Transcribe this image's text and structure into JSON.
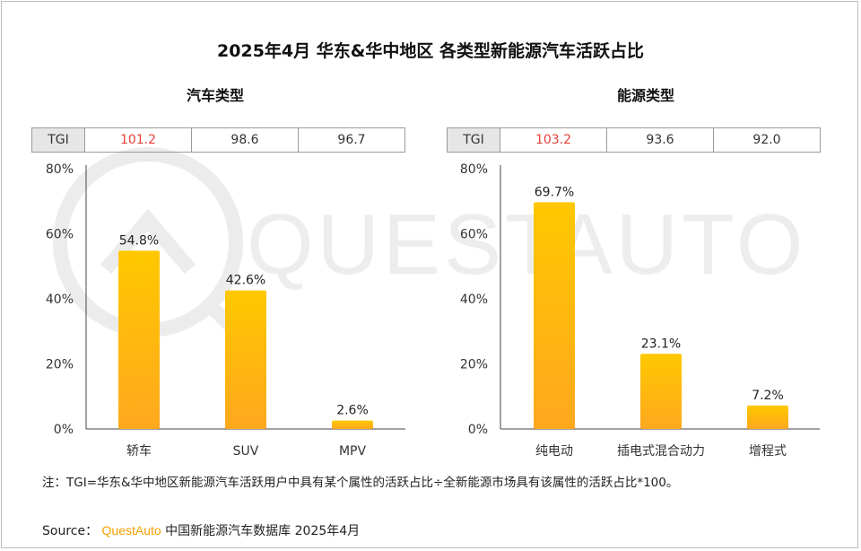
{
  "title": "2025年4月 华东&华中地区 各类型新能源汽车活跃占比",
  "colors": {
    "bar_top": "#ffc800",
    "bar_bottom": "#ffa81e",
    "tgi_high": "#e8413a",
    "axis": "#444444",
    "watermark": "#ececec"
  },
  "watermark_text": "QUESTAUTO",
  "panels": [
    {
      "subtitle": "汽车类型",
      "tgi_label": "TGI",
      "tgi_values": [
        "101.2",
        "98.6",
        "96.7"
      ]
    },
    {
      "subtitle": "能源类型",
      "tgi_label": "TGI",
      "tgi_values": [
        "103.2",
        "93.6",
        "92.0"
      ]
    }
  ],
  "chart_data": [
    {
      "type": "bar",
      "title": "汽车类型",
      "categories": [
        "轿车",
        "SUV",
        "MPV"
      ],
      "values": [
        54.8,
        42.6,
        2.6
      ],
      "value_labels": [
        "54.8%",
        "42.6%",
        "2.6%"
      ],
      "yticks": [
        "0%",
        "20%",
        "40%",
        "60%",
        "80%"
      ],
      "ylim": [
        0,
        80
      ],
      "grid": false
    },
    {
      "type": "bar",
      "title": "能源类型",
      "categories": [
        "纯电动",
        "插电式混合动力",
        "增程式"
      ],
      "values": [
        69.7,
        23.1,
        7.2
      ],
      "value_labels": [
        "69.7%",
        "23.1%",
        "7.2%"
      ],
      "yticks": [
        "0%",
        "20%",
        "40%",
        "60%",
        "80%"
      ],
      "ylim": [
        0,
        80
      ],
      "grid": false
    }
  ],
  "note": "注：TGI=华东&华中地区新能源汽车活跃用户中具有某个属性的活跃占比÷全新能源市场具有该属性的活跃占比*100。",
  "source": {
    "prefix": "Source：",
    "brand": "QuestAuto",
    "text": "中国新能源汽车数据库 2025年4月"
  }
}
